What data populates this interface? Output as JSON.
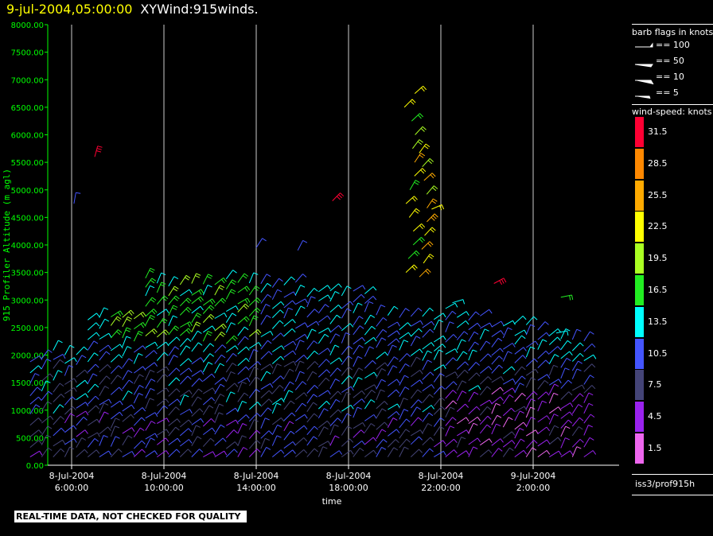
{
  "header": {
    "timestamp": "9-jul-2004,05:00:00",
    "subtitle": "XYWind:915winds."
  },
  "notice": "REAL-TIME DATA, NOT CHECKED FOR QUALITY",
  "footer_id": "iss3/prof915h",
  "legend": {
    "barb_title": "barb flags in knots",
    "barbs": [
      "== 100",
      "== 50",
      "== 10",
      "== 5"
    ],
    "speed_title": "wind-speed: knots",
    "scale": [
      {
        "label": "31.5",
        "color": "#ff0033"
      },
      {
        "label": "28.5",
        "color": "#ff8800"
      },
      {
        "label": "25.5",
        "color": "#ffaa00"
      },
      {
        "label": "22.5",
        "color": "#ffff00"
      },
      {
        "label": "19.5",
        "color": "#aaff22"
      },
      {
        "label": "16.5",
        "color": "#22ee22"
      },
      {
        "label": "13.5",
        "color": "#00ffff"
      },
      {
        "label": "10.5",
        "color": "#4455ff"
      },
      {
        "label": "7.5",
        "color": "#444477"
      },
      {
        "label": "4.5",
        "color": "#9922ee"
      },
      {
        "label": "1.5",
        "color": "#ee66ee"
      }
    ]
  },
  "chart_data": {
    "type": "scatter",
    "title": "9-jul-2004,05:00:00 XYWind:915winds.",
    "ylabel": "915 Profiler Altitude (m agl)",
    "xlabel": "time",
    "ylim": [
      0,
      8000
    ],
    "yticks": [
      "0.00",
      "500.00",
      "1000.00",
      "1500.00",
      "2000.00",
      "2500.00",
      "3000.00",
      "3500.00",
      "4000.00",
      "4500.00",
      "5000.00",
      "5500.00",
      "6000.00",
      "6500.00",
      "7000.00",
      "7500.00",
      "8000.00"
    ],
    "xticks": [
      {
        "line1": "8-Jul-2004",
        "line2": "6:00:00"
      },
      {
        "line1": "8-Jul-2004",
        "line2": "10:00:00"
      },
      {
        "line1": "8-Jul-2004",
        "line2": "14:00:00"
      },
      {
        "line1": "8-Jul-2004",
        "line2": "18:00:00"
      },
      {
        "line1": "8-Jul-2004",
        "line2": "22:00:00"
      },
      {
        "line1": "9-Jul-2004",
        "line2": "2:00:00"
      }
    ],
    "grid": "vertical lines at x ticks",
    "barb_samples": [
      {
        "t": "8-Jul-2004 7:00",
        "alt": 5600,
        "speed": 31.5
      },
      {
        "t": "8-Jul-2004 17:30",
        "alt": 4800,
        "speed": 31.5
      },
      {
        "t": "8-Jul-2004 20:30",
        "alt": 6600,
        "speed": 19.5
      },
      {
        "t": "8-Jul-2004 21:00",
        "alt": 4600,
        "speed": 22.5
      },
      {
        "t": "9-Jul-2004 0:00",
        "alt": 3300,
        "speed": 31.5
      },
      {
        "t": "9-Jul-2004 3:00",
        "alt": 3000,
        "speed": 16.5
      },
      {
        "t": "9-Jul-2004 5:00",
        "alt": 2400,
        "speed": 13.5
      },
      {
        "t": "8-Jul-2004 10:00",
        "alt": 2600,
        "speed": 16.5
      },
      {
        "t": "8-Jul-2004 14:00",
        "alt": 1200,
        "speed": 10.5
      },
      {
        "t": "8-Jul-2004 18:00",
        "alt": 800,
        "speed": 7.5
      },
      {
        "t": "9-Jul-2004 2:00",
        "alt": 900,
        "speed": 4.5
      }
    ]
  }
}
